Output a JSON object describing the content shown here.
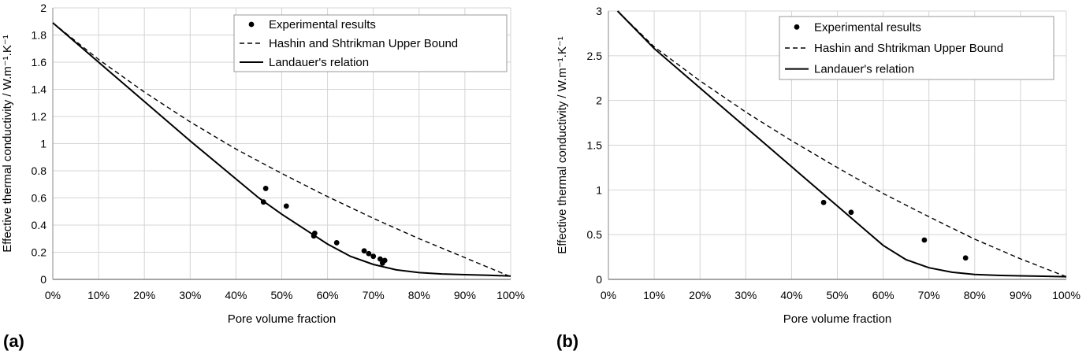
{
  "chart_data": [
    {
      "type": "scatter",
      "panel_label": "(a)",
      "xlabel": "Pore volume fraction",
      "ylabel": "Effective thermal conductivity / W.m⁻¹.K⁻¹",
      "xlim": [
        0,
        1
      ],
      "ylim": [
        0,
        2
      ],
      "xticks": [
        0,
        0.1,
        0.2,
        0.3,
        0.4,
        0.5,
        0.6,
        0.7,
        0.8,
        0.9,
        1.0
      ],
      "xtick_labels": [
        "0%",
        "10%",
        "20%",
        "30%",
        "40%",
        "50%",
        "60%",
        "70%",
        "80%",
        "90%",
        "100%"
      ],
      "yticks": [
        0,
        0.2,
        0.4,
        0.6,
        0.8,
        1,
        1.2,
        1.4,
        1.6,
        1.8,
        2
      ],
      "ytick_labels": [
        "0",
        "0.2",
        "0.4",
        "0.6",
        "0.8",
        "1",
        "1.2",
        "1.4",
        "1.6",
        "1.8",
        "2"
      ],
      "grid": true,
      "legend_position": "top-right",
      "series": [
        {
          "name": "Experimental results",
          "style": "points",
          "x": [
            0.46,
            0.465,
            0.51,
            0.57,
            0.572,
            0.62,
            0.68,
            0.69,
            0.7,
            0.715,
            0.72,
            0.725
          ],
          "y": [
            0.57,
            0.67,
            0.54,
            0.32,
            0.34,
            0.27,
            0.21,
            0.19,
            0.17,
            0.15,
            0.12,
            0.14
          ]
        },
        {
          "name": "Hashin and Shtrikman Upper Bound",
          "style": "dashed",
          "x": [
            0,
            0.1,
            0.2,
            0.3,
            0.4,
            0.5,
            0.6,
            0.7,
            0.8,
            0.9,
            1.0
          ],
          "y": [
            1.89,
            1.62,
            1.38,
            1.16,
            0.96,
            0.78,
            0.61,
            0.45,
            0.3,
            0.16,
            0.02
          ]
        },
        {
          "name": "Landauer's relation",
          "style": "solid",
          "x": [
            0,
            0.1,
            0.2,
            0.3,
            0.4,
            0.45,
            0.5,
            0.55,
            0.6,
            0.65,
            0.7,
            0.75,
            0.8,
            0.85,
            0.9,
            0.95,
            1.0
          ],
          "y": [
            1.89,
            1.6,
            1.31,
            1.02,
            0.74,
            0.6,
            0.48,
            0.37,
            0.26,
            0.17,
            0.11,
            0.07,
            0.05,
            0.04,
            0.035,
            0.03,
            0.025
          ]
        }
      ]
    },
    {
      "type": "scatter",
      "panel_label": "(b)",
      "xlabel": "Pore volume fraction",
      "ylabel": "Effective thermal conductivity / W.m⁻¹.K⁻¹",
      "xlim": [
        0,
        1
      ],
      "ylim": [
        0,
        3
      ],
      "xticks": [
        0,
        0.1,
        0.2,
        0.3,
        0.4,
        0.5,
        0.6,
        0.7,
        0.8,
        0.9,
        1.0
      ],
      "xtick_labels": [
        "0%",
        "10%",
        "20%",
        "30%",
        "40%",
        "50%",
        "60%",
        "70%",
        "80%",
        "90%",
        "100%"
      ],
      "yticks": [
        0,
        0.5,
        1,
        1.5,
        2,
        2.5,
        3
      ],
      "ytick_labels": [
        "0",
        "0.5",
        "1",
        "1.5",
        "2",
        "2.5",
        "3"
      ],
      "grid": true,
      "legend_position": "top-center",
      "series": [
        {
          "name": "Experimental results",
          "style": "points",
          "x": [
            0.47,
            0.53,
            0.69,
            0.78
          ],
          "y": [
            0.86,
            0.75,
            0.44,
            0.24
          ]
        },
        {
          "name": "Hashin and Shtrikman Upper Bound",
          "style": "dashed",
          "x": [
            0.02,
            0.1,
            0.2,
            0.3,
            0.4,
            0.5,
            0.6,
            0.7,
            0.8,
            0.9,
            1.0
          ],
          "y": [
            3.0,
            2.6,
            2.22,
            1.87,
            1.55,
            1.25,
            0.96,
            0.7,
            0.45,
            0.23,
            0.03
          ]
        },
        {
          "name": "Landauer's relation",
          "style": "solid",
          "x": [
            0.02,
            0.1,
            0.2,
            0.3,
            0.4,
            0.5,
            0.55,
            0.6,
            0.65,
            0.7,
            0.75,
            0.8,
            0.85,
            0.9,
            0.95,
            1.0
          ],
          "y": [
            3.0,
            2.58,
            2.14,
            1.7,
            1.26,
            0.82,
            0.6,
            0.38,
            0.22,
            0.13,
            0.08,
            0.055,
            0.045,
            0.04,
            0.035,
            0.03
          ]
        }
      ]
    }
  ]
}
